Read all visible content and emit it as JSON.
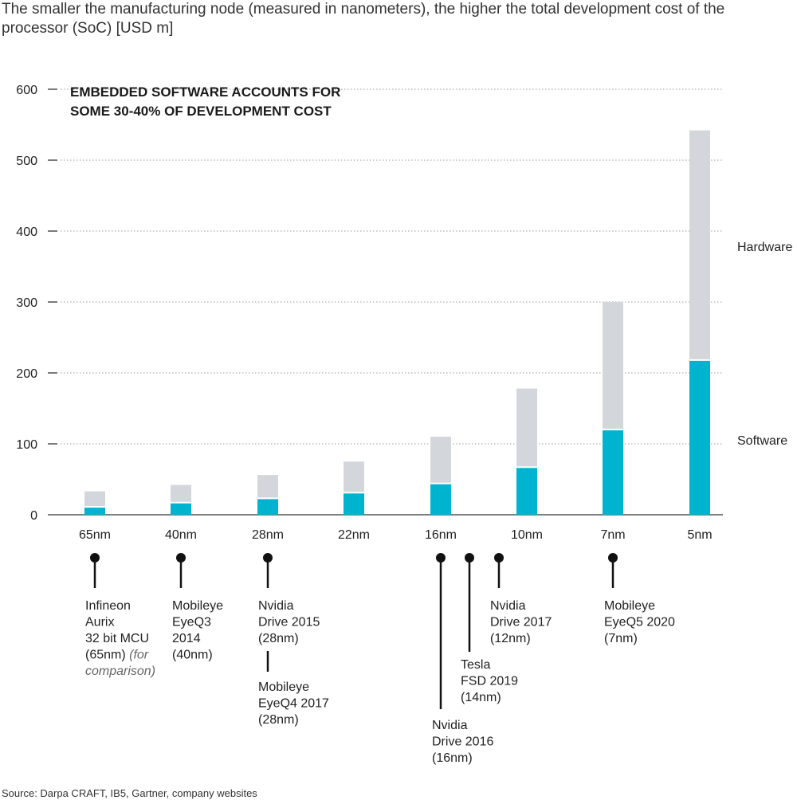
{
  "subtitle": "The smaller the manufacturing node (measured in nanometers), the higher the total development cost of the processor (SoC) [USD m]",
  "source": "Source: Darpa CRAFT, IB5, Gartner, company websites",
  "colors": {
    "software": "#00b4d0",
    "hardware": "#d3d6db",
    "grid": "#9a9a9a",
    "text": "#222222"
  },
  "chart_data": {
    "type": "bar",
    "stacked": true,
    "title": "EMBEDDED SOFTWARE ACCOUNTS FOR SOME 30-40% OF DEVELOPMENT COST",
    "title_lines": [
      "EMBEDDED SOFTWARE ACCOUNTS FOR",
      "SOME 30-40% OF DEVELOPMENT COST"
    ],
    "categories": [
      "65nm",
      "40nm",
      "28nm",
      "22nm",
      "16nm",
      "10nm",
      "7nm",
      "5nm"
    ],
    "series": [
      {
        "name": "Software",
        "values": [
          10,
          16,
          22,
          30,
          43,
          66,
          119,
          217
        ]
      },
      {
        "name": "Hardware",
        "values": [
          23,
          26,
          34,
          45,
          67,
          112,
          181,
          325
        ]
      }
    ],
    "ylim": [
      0,
      600
    ],
    "yticks": [
      0,
      100,
      200,
      300,
      400,
      500,
      600
    ],
    "grid": true,
    "legend": "right, beside the last bar"
  },
  "annotations": [
    {
      "node": "65nm",
      "lines": [
        "Infineon",
        "Aurix",
        "32 bit MCU",
        "(65nm)"
      ],
      "note": [
        "(for",
        "comparison)"
      ]
    },
    {
      "node": "40nm",
      "lines": [
        "Mobileye",
        "EyeQ3",
        "2014",
        "(40nm)"
      ]
    },
    {
      "node": "28nm",
      "lines": [
        "Nvidia",
        "Drive 2015",
        "(28nm)"
      ]
    },
    {
      "node": "28nm",
      "lines": [
        "Mobileye",
        "EyeQ4 2017",
        "(28nm)"
      ]
    },
    {
      "node": "16nm",
      "lines": [
        "Nvidia",
        "Drive 2016",
        "(16nm)"
      ]
    },
    {
      "node": "14nm",
      "lines": [
        "Tesla",
        "FSD 2019",
        "(14nm)"
      ]
    },
    {
      "node": "12nm",
      "lines": [
        "Nvidia",
        "Drive 2017",
        "(12nm)"
      ]
    },
    {
      "node": "7nm",
      "lines": [
        "Mobileye",
        "EyeQ5 2020",
        "(7nm)"
      ]
    }
  ]
}
